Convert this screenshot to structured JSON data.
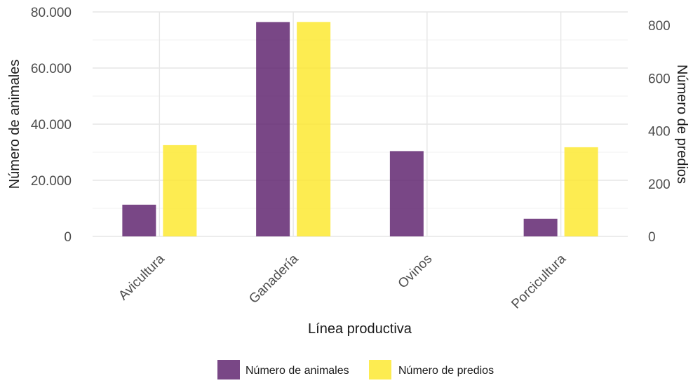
{
  "chart_data": {
    "type": "bar",
    "categories": [
      "Avicultura",
      "Ganadería",
      "Ovinos",
      "Porcicultura"
    ],
    "series": [
      {
        "name": "Número de animales",
        "axis": "left",
        "values": [
          11300,
          76400,
          30400,
          6300
        ],
        "color": "#5C1E6B"
      },
      {
        "name": "Número de predios",
        "axis": "right",
        "values": [
          346,
          813,
          null,
          338
        ],
        "color": "#FDE725"
      }
    ],
    "y_left": {
      "label": "Número de animales",
      "ylim": [
        0,
        80000
      ],
      "ticks": [
        0,
        20000,
        40000,
        60000,
        80000
      ],
      "tick_labels": [
        "0",
        "20.000",
        "40.000",
        "60.000",
        "80.000"
      ]
    },
    "y_right": {
      "label": "Número de predios",
      "ylim": [
        0,
        851
      ],
      "ticks": [
        0,
        200,
        400,
        600,
        800
      ],
      "tick_labels": [
        "0",
        "200",
        "400",
        "600",
        "800"
      ]
    },
    "xlabel": "Línea productiva",
    "grid": true,
    "legend_position": "bottom"
  }
}
